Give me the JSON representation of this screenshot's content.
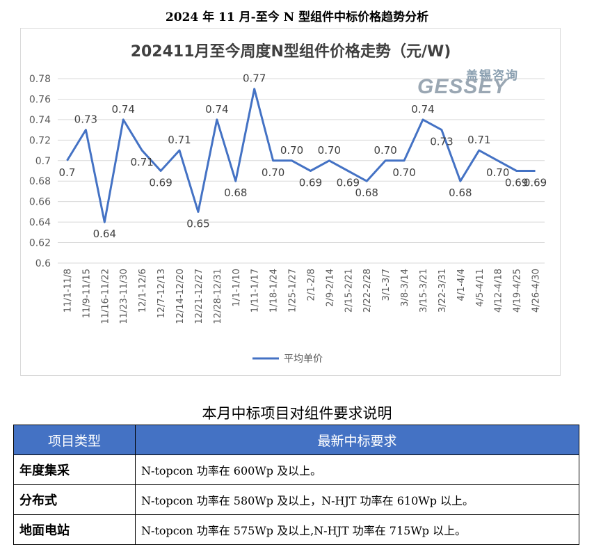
{
  "page": {
    "heading": "2024 年 11 月-至今 N 型组件中标价格趋势分析"
  },
  "logo": {
    "cn": "盖锡咨询",
    "en": "GESSEY"
  },
  "chart_data": {
    "type": "line",
    "title": "202411月至今周度N型组件价格走势（元/W)",
    "categories": [
      "11/1-11/8",
      "11/9-11/15",
      "11/16-11/22",
      "11/23-11/30",
      "12/1-12/6",
      "12/7-12/13",
      "12/14-12/20",
      "12/21-12/27",
      "12/28-12/31",
      "1/1-1/10",
      "1/11-1/17",
      "1/18-1/24",
      "1/25-1/27",
      "2/1-2/8",
      "2/9-2/14",
      "2/15-2/21",
      "2/22-2/28",
      "3/1-3/7",
      "3/8-3/14",
      "3/15-3/21",
      "3/22-3/31",
      "4/1-4/4",
      "4/5-4/11",
      "4/12-4/18",
      "4/19-4/25",
      "4/26-4/30"
    ],
    "series": [
      {
        "name": "平均单价",
        "values": [
          0.7,
          0.73,
          0.64,
          0.74,
          0.71,
          0.69,
          0.71,
          0.65,
          0.74,
          0.68,
          0.77,
          0.7,
          0.7,
          0.69,
          0.7,
          0.69,
          0.68,
          0.7,
          0.7,
          0.74,
          0.73,
          0.68,
          0.71,
          0.7,
          0.69,
          0.69
        ],
        "data_labels": [
          "0.7",
          "0.73",
          "0.64",
          "0.74",
          "0.71",
          "0.69",
          "0.71",
          "0.65",
          "0.74",
          "0.68",
          "0.77",
          "0.70",
          "0.70",
          "0.69",
          "0.70",
          "0.69",
          "0.68",
          "0.70",
          "0.70",
          "0.74",
          "0.73",
          "0.68",
          "0.71",
          "0.70",
          "0.69",
          "0.69"
        ],
        "color": "#4472c4"
      }
    ],
    "ylim": [
      0.6,
      0.78
    ],
    "yticks": [
      "0.6",
      "0.62",
      "0.64",
      "0.66",
      "0.68",
      "0.7",
      "0.72",
      "0.74",
      "0.76",
      "0.78"
    ],
    "grid": true,
    "legend": "bottom"
  },
  "table": {
    "caption": "本月中标项目对组件要求说明",
    "headers": [
      "项目类型",
      "最新中标要求"
    ],
    "rows": [
      {
        "type": "年度集采",
        "requirement": "N-topcon 功率在 600Wp 及以上。"
      },
      {
        "type": "分布式",
        "requirement": "N-topcon 功率在 580Wp 及以上，N-HJT 功率在 610Wp 以上。"
      },
      {
        "type": "地面电站",
        "requirement": "N-topcon 功率在 575Wp 及以上,N-HJT 功率在 715Wp 以上。"
      }
    ]
  }
}
